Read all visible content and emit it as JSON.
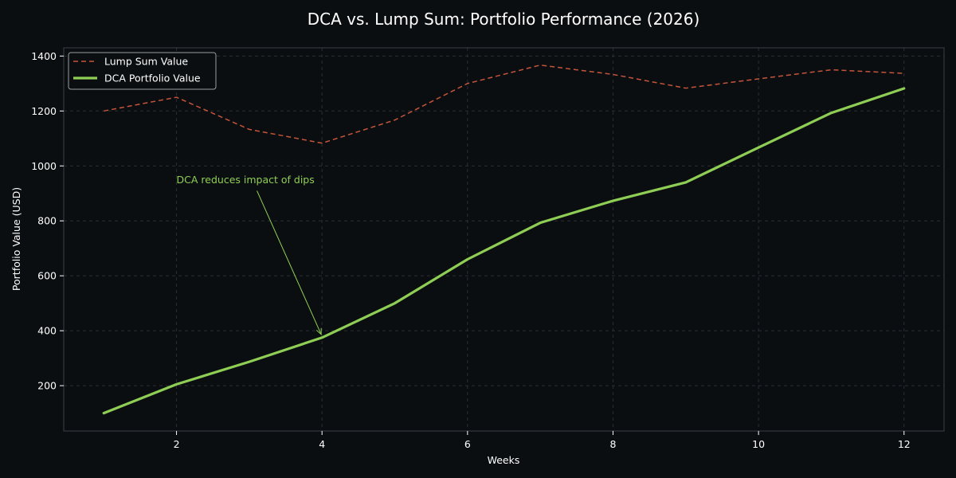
{
  "chart_data": {
    "type": "line",
    "title": "DCA vs. Lump Sum: Portfolio Performance (2026)",
    "xlabel": "Weeks",
    "ylabel": "Portfolio Value (USD)",
    "x": [
      1,
      2,
      3,
      4,
      5,
      6,
      7,
      8,
      9,
      10,
      11,
      12
    ],
    "xlim": [
      0.45,
      12.55
    ],
    "ylim": [
      35,
      1430
    ],
    "xticks": [
      2,
      4,
      6,
      8,
      10,
      12
    ],
    "yticks": [
      200,
      400,
      600,
      800,
      1000,
      1200,
      1400
    ],
    "grid": true,
    "legend_position": "top-left",
    "series": [
      {
        "name": "Lump Sum Value",
        "style": "dashed",
        "color": "#c4553a",
        "values": [
          1200,
          1250,
          1133,
          1083,
          1167,
          1300,
          1367,
          1333,
          1283,
          1317,
          1350,
          1337
        ]
      },
      {
        "name": "DCA Portfolio Value",
        "style": "solid",
        "color": "#8fce55",
        "values": [
          100,
          205,
          287,
          375,
          500,
          660,
          793,
          873,
          940,
          1067,
          1193,
          1282
        ]
      }
    ],
    "annotations": [
      {
        "text": "DCA reduces impact of dips",
        "x": 4,
        "y": 375,
        "text_x": 2,
        "text_y": 950,
        "color": "#8fce55"
      }
    ]
  }
}
